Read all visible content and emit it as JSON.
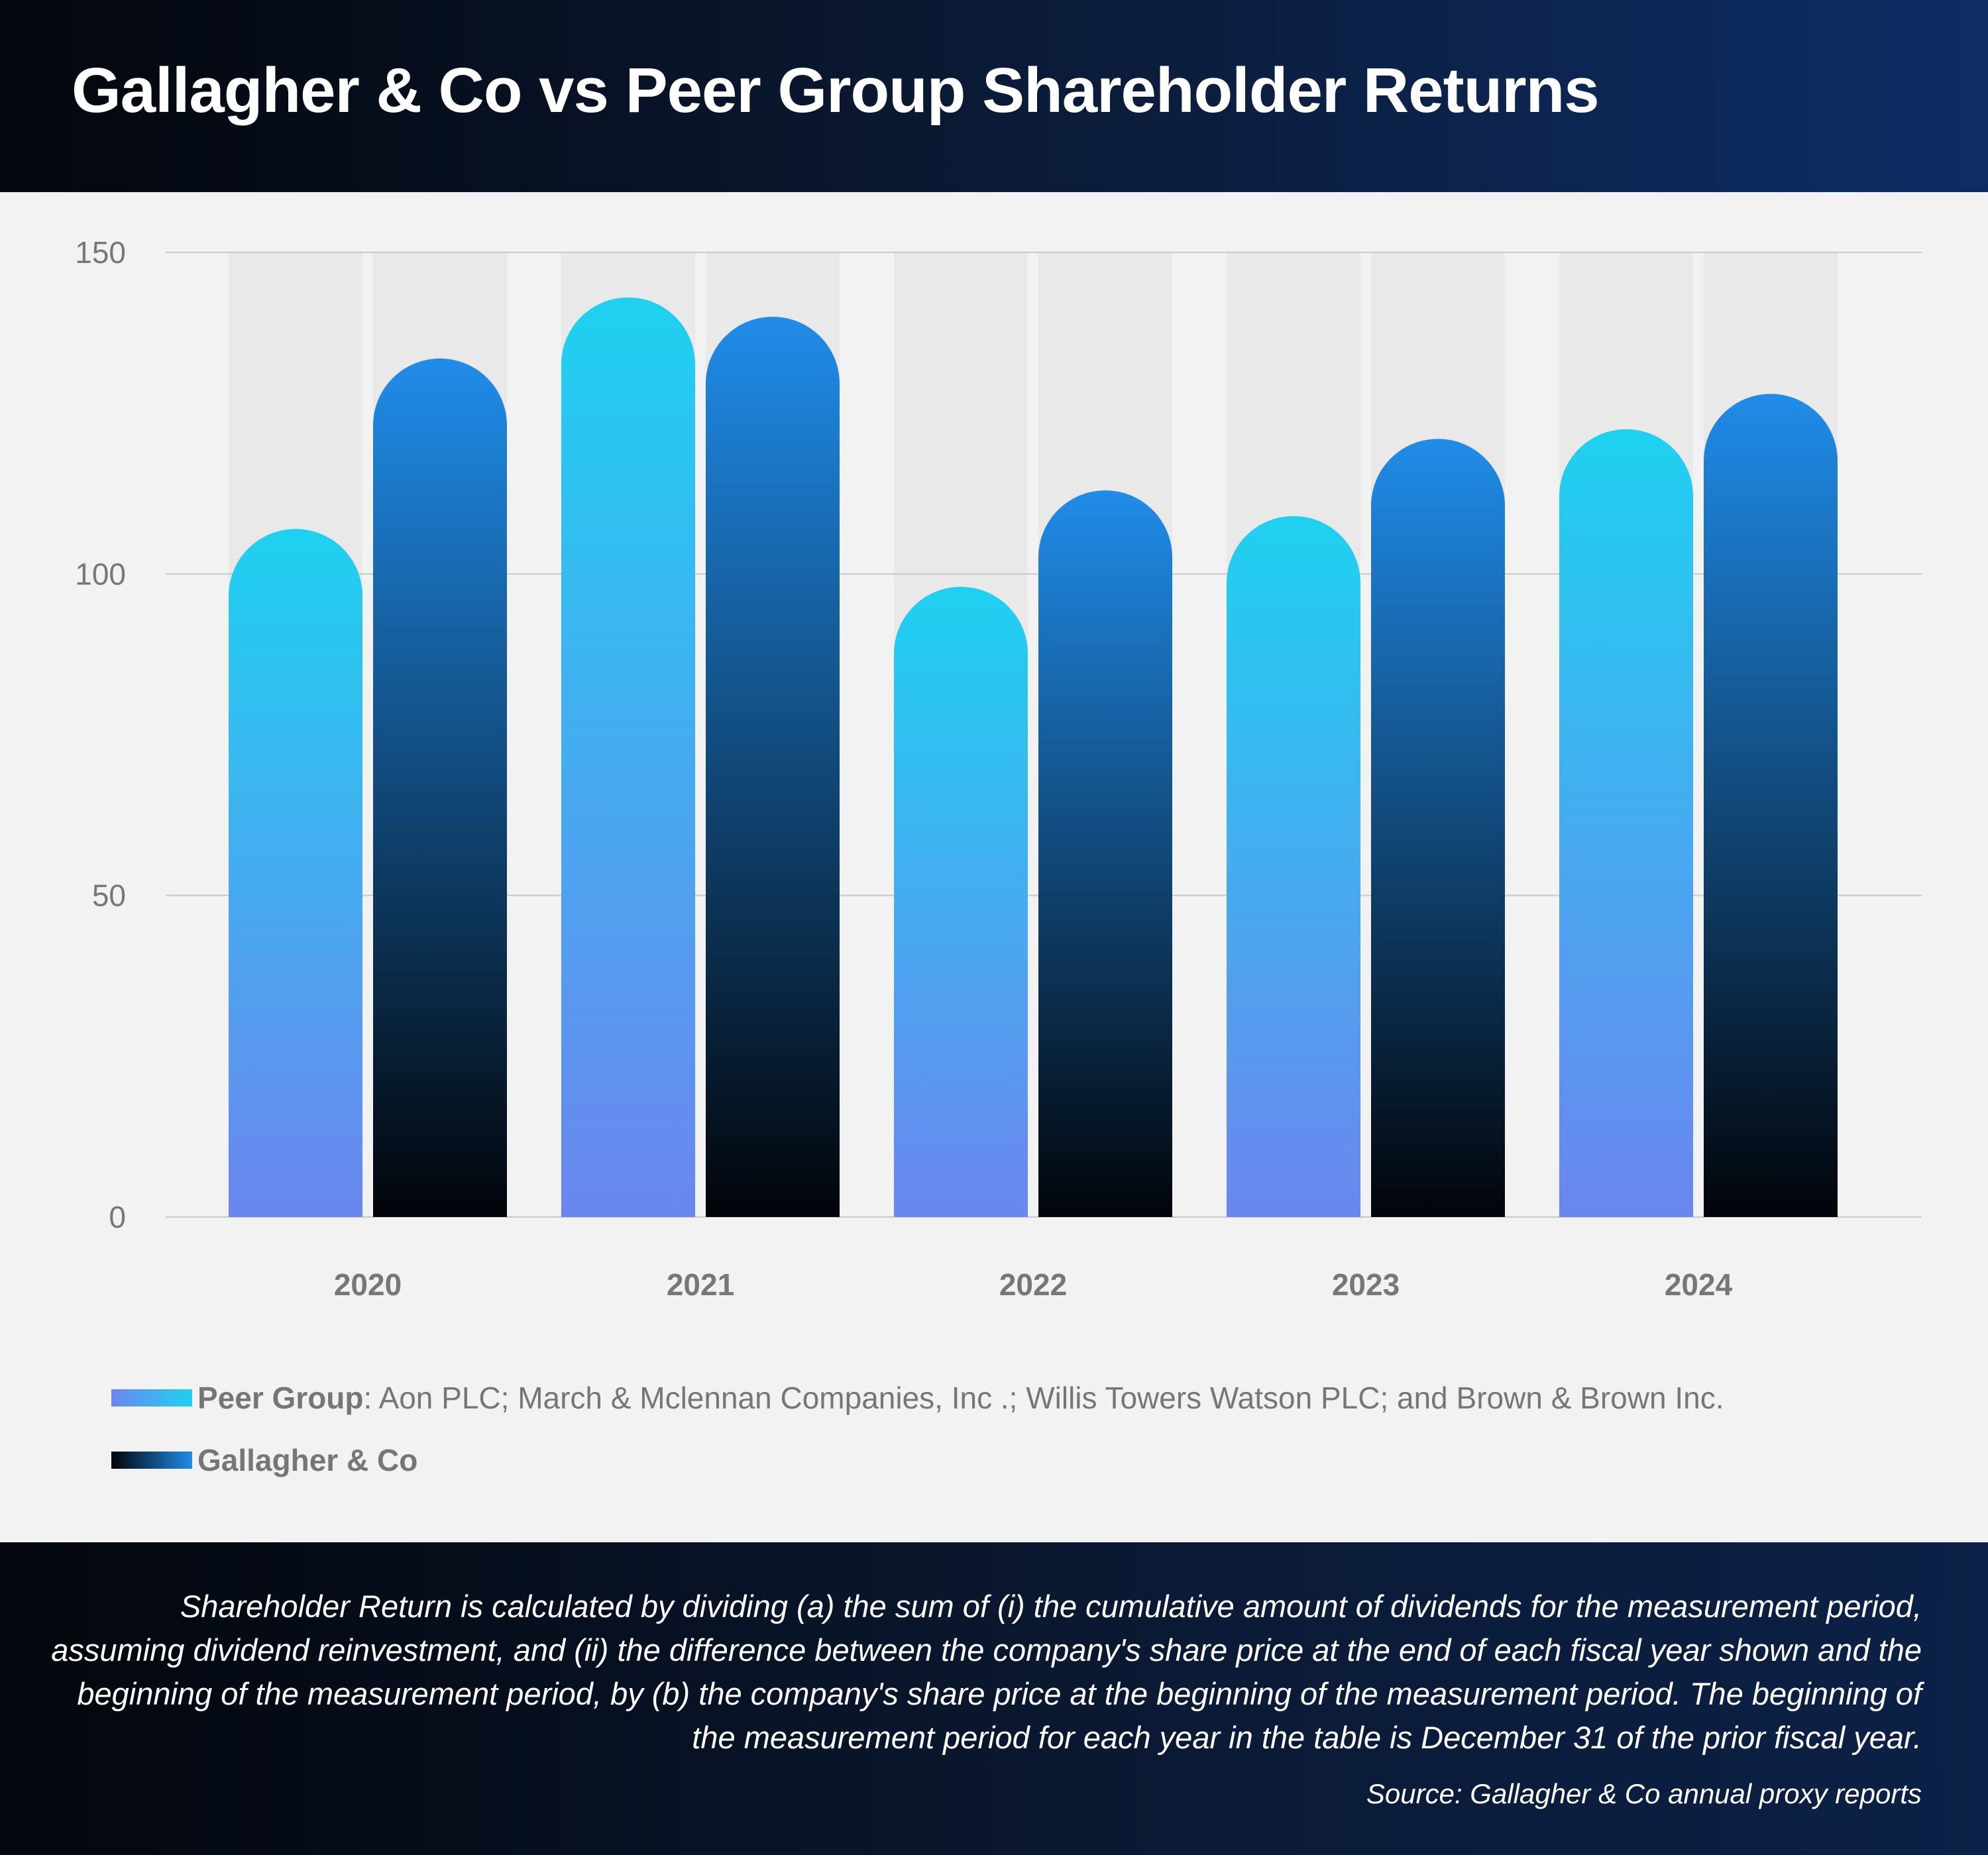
{
  "title": "Gallagher & Co vs Peer Group Shareholder Returns",
  "chart_data": {
    "type": "bar",
    "categories": [
      "2020",
      "2021",
      "2022",
      "2023",
      "2024"
    ],
    "series": [
      {
        "name": "Peer Group",
        "values": [
          107,
          143,
          98,
          109,
          122.5
        ]
      },
      {
        "name": "Gallagher & Co",
        "values": [
          133.5,
          140,
          113,
          121,
          128
        ]
      }
    ],
    "ylim": [
      0,
      150
    ],
    "yticks": [
      "0",
      "50",
      "100",
      "150"
    ],
    "grid": true,
    "legend_placement": "bottom-left",
    "colors": {
      "peer_top": "#1fd1f0",
      "peer_bottom": "#6b86ef",
      "gallagher_top": "#208ce9",
      "gallagher_bottom": "#020409",
      "column_bg": "#e9e9e9",
      "grid": "#c8c8c8",
      "tick_text": "#777777"
    }
  },
  "legend": {
    "peer": {
      "name": "Peer Group",
      "description": ": Aon PLC; March & Mclennan Companies, Inc .; Willis Towers Watson PLC; and Brown & Brown Inc."
    },
    "gallagher": {
      "name": "Gallagher & Co"
    }
  },
  "footer": {
    "note": "Shareholder Return is calculated by dividing (a) the sum of (i) the cumulative amount of dividends for the measurement period, assuming dividend reinvestment, and (ii) the difference between the company's share price at the end of each fiscal year shown and the beginning of the measurement period, by (b) the company's share price at the beginning of the measurement period. The beginning of the measurement period for each year in the table is December 31 of the prior fiscal year.",
    "source": "Source: Gallagher & Co annual proxy reports"
  }
}
